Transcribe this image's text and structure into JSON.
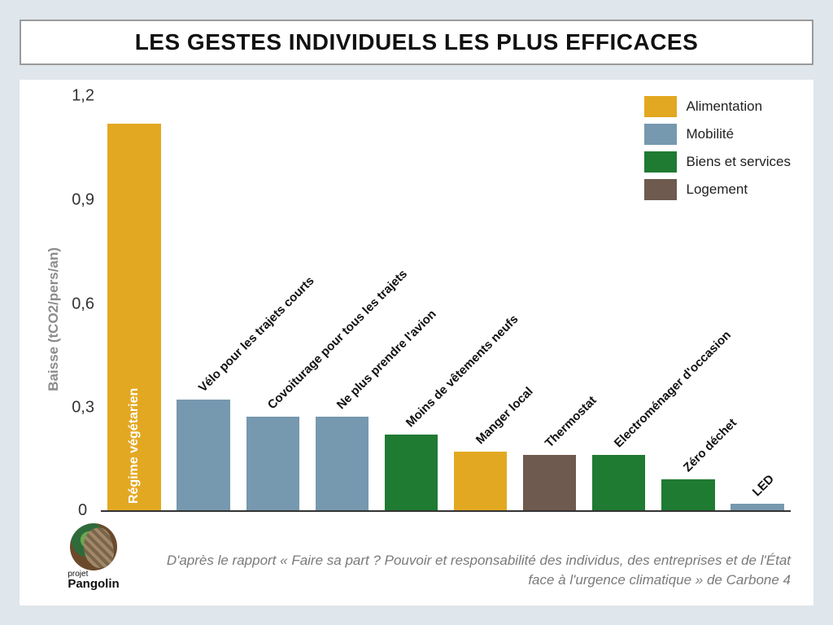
{
  "title": "LES GESTES INDIVIDUELS LES PLUS EFFICACES",
  "chart": {
    "type": "bar",
    "ylabel": "Baisse (tCO2/pers/an)",
    "ylim": [
      0,
      1.2
    ],
    "yticks": [
      0,
      0.3,
      0.6,
      0.9,
      1.2
    ],
    "ytick_labels": [
      "0",
      "0,3",
      "0,6",
      "0,9",
      "1,2"
    ],
    "background_color": "#ffffff",
    "axis_color": "#333333",
    "tick_fontsize": 20,
    "ylabel_fontsize": 17,
    "ylabel_color": "#8c8c8c",
    "bar_label_fontsize": 15,
    "bar_label_rotation_deg": -45,
    "bar_gap_pct": 2.3,
    "categories": {
      "alimentation": {
        "label": "Alimentation",
        "color": "#e3a821"
      },
      "mobilite": {
        "label": "Mobilité",
        "color": "#7699af"
      },
      "biens": {
        "label": "Biens et services",
        "color": "#1f7a32"
      },
      "logement": {
        "label": "Logement",
        "color": "#6e5a4e"
      }
    },
    "legend_order": [
      "alimentation",
      "mobilite",
      "biens",
      "logement"
    ],
    "bars": [
      {
        "label": "Régime végétarien",
        "value": 1.12,
        "category": "alimentation",
        "label_inside": true
      },
      {
        "label": "Vélo pour  les trajets courts",
        "value": 0.32,
        "category": "mobilite",
        "label_inside": false
      },
      {
        "label": "Covoiturage  pour tous les trajets",
        "value": 0.27,
        "category": "mobilite",
        "label_inside": false
      },
      {
        "label": "Ne plus  prendre l'avion",
        "value": 0.27,
        "category": "mobilite",
        "label_inside": false
      },
      {
        "label": "Moins de vêtements neufs",
        "value": 0.22,
        "category": "biens",
        "label_inside": false
      },
      {
        "label": "Manger local",
        "value": 0.17,
        "category": "alimentation",
        "label_inside": false
      },
      {
        "label": "Thermostat",
        "value": 0.16,
        "category": "logement",
        "label_inside": false
      },
      {
        "label": "Electroménager d'occasion",
        "value": 0.16,
        "category": "biens",
        "label_inside": false
      },
      {
        "label": "Zéro déchet",
        "value": 0.09,
        "category": "biens",
        "label_inside": false
      },
      {
        "label": "LED",
        "value": 0.02,
        "category": "mobilite",
        "label_inside": false
      }
    ]
  },
  "source": {
    "prefix": "D'après le rapport « ",
    "title_italic": "Faire sa part ? Pouvoir et responsabilité des individus, des entreprises et de l'État face à l'urgence climatique",
    "suffix": " » de Carbone 4"
  },
  "logo": {
    "small": "projet",
    "name": "Pangolin"
  },
  "page": {
    "outer_bg": "#dfe6ec",
    "title_border": "#9a9a9a",
    "title_fontsize": 28
  }
}
